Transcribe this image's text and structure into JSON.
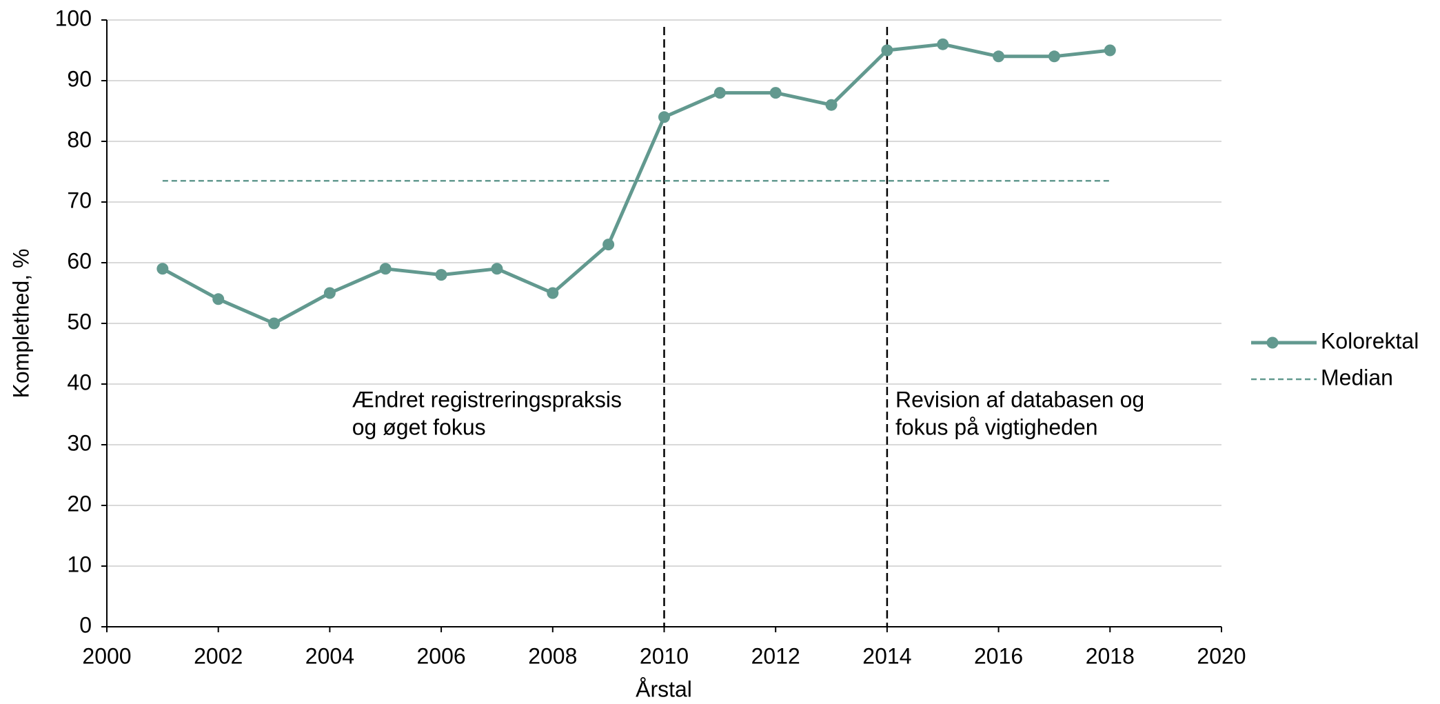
{
  "chart_data": {
    "type": "line",
    "x": [
      2001,
      2002,
      2003,
      2004,
      2005,
      2006,
      2007,
      2008,
      2009,
      2010,
      2011,
      2012,
      2013,
      2014,
      2015,
      2016,
      2017,
      2018
    ],
    "series": [
      {
        "name": "Kolorektal",
        "color": "#62998f",
        "line_style": "solid",
        "markers": true,
        "values": [
          59,
          54,
          50,
          55,
          59,
          58,
          59,
          55,
          63,
          84,
          88,
          88,
          86,
          95,
          96,
          94,
          94,
          95
        ]
      },
      {
        "name": "Median",
        "color": "#62998f",
        "line_style": "dashed",
        "markers": false,
        "values": [
          73.5,
          73.5,
          73.5,
          73.5,
          73.5,
          73.5,
          73.5,
          73.5,
          73.5,
          73.5,
          73.5,
          73.5,
          73.5,
          73.5,
          73.5,
          73.5,
          73.5,
          73.5
        ]
      }
    ],
    "xlabel": "Årstal",
    "ylabel": "Komplethed, %",
    "xlim": [
      2000,
      2020
    ],
    "xticks": [
      2000,
      2002,
      2004,
      2006,
      2008,
      2010,
      2012,
      2014,
      2016,
      2018,
      2020
    ],
    "ylim": [
      0,
      100
    ],
    "yticks": [
      0,
      10,
      20,
      30,
      40,
      50,
      60,
      70,
      80,
      90,
      100
    ],
    "grid": true,
    "legend": "right",
    "vlines": [
      2010,
      2014
    ],
    "annotations": [
      {
        "x": 2004.4,
        "lines": [
          "Ændret registreringspraksis",
          "og øget fokus"
        ]
      },
      {
        "x": 2014.15,
        "lines": [
          "Revision af databasen og",
          "fokus på vigtigheden"
        ]
      }
    ]
  }
}
